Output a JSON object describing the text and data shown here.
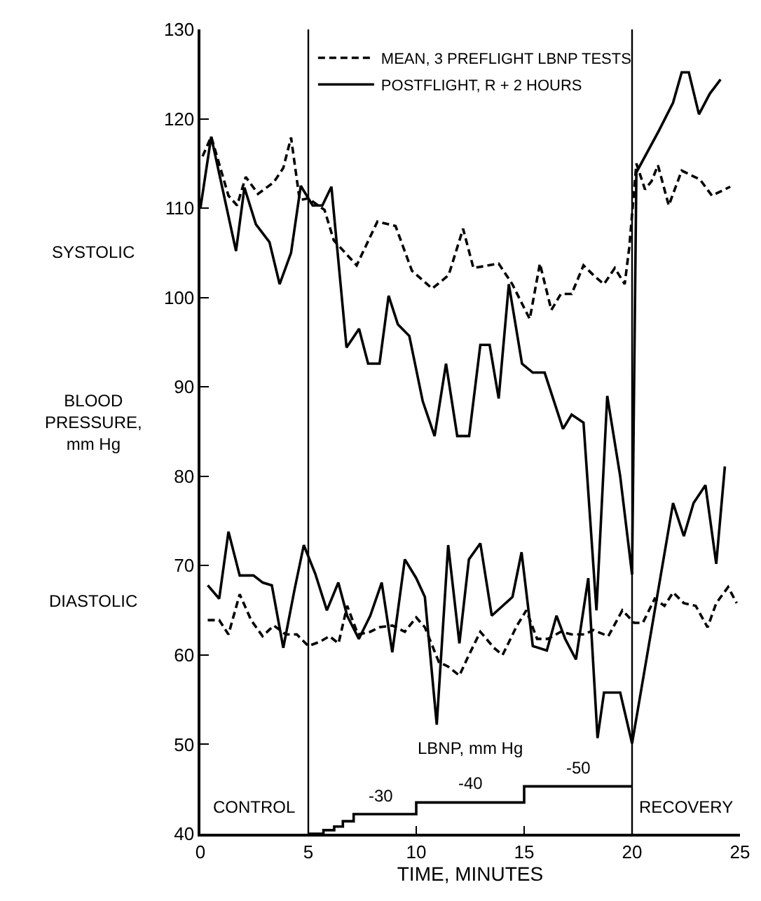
{
  "chart_data": {
    "type": "line",
    "xlabel": "TIME, MINUTES",
    "ylabel": "BLOOD PRESSURE, mm Hg",
    "xlim": [
      0,
      25
    ],
    "xticks": [
      0,
      5,
      10,
      15,
      20,
      25
    ],
    "ylim": [
      40,
      130
    ],
    "yticks": [
      40,
      50,
      60,
      70,
      80,
      90,
      100,
      110,
      120,
      130
    ],
    "legend": "top",
    "marker": "none",
    "series": [
      {
        "name": "MEAN, 3 PREFLIGHT LBNP TESTS",
        "color": "#000000",
        "line_style": "dashed",
        "x": [
          0.1,
          0.5,
          1.3,
          1.7,
          2.1,
          2.67,
          3.4,
          3.84,
          4.2,
          4.6,
          5.0,
          5.75,
          6.18,
          7.24,
          8.2,
          9.04,
          9.8,
          10.74,
          11.5,
          12.17,
          12.65,
          13.82,
          14.45,
          14.78,
          15.26,
          15.73,
          16.26,
          16.7,
          17.2,
          17.75,
          18.3,
          18.7,
          19.2,
          19.66,
          19.87,
          20.2,
          20.6,
          20.9,
          21.2,
          21.7,
          22.3,
          23.15,
          23.7,
          24.55
        ],
        "values": [
          115.8,
          118,
          111.4,
          110.3,
          113.5,
          111.6,
          112.9,
          114.5,
          117.9,
          110.9,
          111.1,
          109.8,
          106.4,
          103.6,
          108.5,
          108,
          103,
          101,
          102.5,
          107.7,
          103.3,
          103.8,
          101.5,
          99.9,
          97.6,
          103.8,
          98.6,
          100.4,
          100.4,
          103.6,
          102.3,
          101.5,
          103.3,
          101.5,
          105.6,
          115,
          112.1,
          113,
          114.8,
          110.3,
          114.2,
          113.2,
          111.4,
          112.4
        ]
      },
      {
        "name": "POSTFLIGHT, R + 2 HOURS",
        "color": "#000000",
        "line_style": "solid",
        "x": [
          0,
          0.5,
          1.65,
          2.04,
          2.57,
          3.2,
          3.67,
          4.2,
          4.65,
          5.2,
          5.65,
          6.07,
          6.77,
          7.35,
          7.77,
          8.3,
          8.72,
          9.15,
          9.68,
          10.3,
          10.85,
          11.38,
          11.9,
          12.45,
          12.97,
          13.4,
          13.82,
          14.29,
          14.9,
          15.4,
          15.95,
          16.8,
          17.2,
          17.75,
          18.35,
          18.85,
          19.45,
          20.0,
          20.2,
          21.25,
          21.9,
          22.3,
          22.63,
          23.1,
          23.6,
          24.1
        ],
        "values": [
          110,
          118,
          105.2,
          112.3,
          108.2,
          106.2,
          101.5,
          105,
          112.5,
          110.3,
          110.3,
          112.4,
          94.4,
          96.5,
          92.6,
          92.6,
          100.2,
          97,
          95.7,
          88.4,
          84.5,
          92.6,
          84.5,
          84.5,
          94.7,
          94.7,
          88.7,
          101.5,
          92.6,
          91.6,
          91.6,
          85.3,
          86.9,
          86,
          65,
          89,
          80,
          69,
          114,
          118.7,
          121.8,
          125.2,
          125.2,
          120.5,
          122.8,
          124.4
        ]
      },
      {
        "color": "#000000",
        "line_style": "dashed",
        "x": [
          0.34,
          0.87,
          1.3,
          1.82,
          2.35,
          2.88,
          3.4,
          3.95,
          4.47,
          5.0,
          5.55,
          5.98,
          6.4,
          6.8,
          7.3,
          7.87,
          8.3,
          8.9,
          9.47,
          10.0,
          10.4,
          11.05,
          11.48,
          12.0,
          12.44,
          12.97,
          13.6,
          14.0,
          14.67,
          15.1,
          15.6,
          16.1,
          16.7,
          17.2,
          17.8,
          18.2,
          18.9,
          19.55,
          20.1,
          20.5,
          21.05,
          21.5,
          21.9,
          22.4,
          22.95,
          23.5,
          23.9,
          24.45,
          24.85
        ],
        "values": [
          63.9,
          63.9,
          62.3,
          66.8,
          63.9,
          62.1,
          63.3,
          62.3,
          62.3,
          61,
          61.5,
          62.1,
          61.3,
          65.5,
          62.3,
          62.6,
          63.1,
          63.3,
          62.6,
          64.2,
          63.1,
          59.2,
          58.7,
          57.7,
          60,
          62.6,
          60.8,
          60,
          63.3,
          65,
          61.8,
          61.8,
          62.6,
          62.3,
          62.3,
          62.8,
          62.1,
          65,
          63.6,
          63.6,
          66.3,
          65.5,
          67,
          65.8,
          65.5,
          63.1,
          65.8,
          67.6,
          65.8
        ]
      },
      {
        "color": "#000000",
        "line_style": "solid",
        "x": [
          0.34,
          0.87,
          1.3,
          1.82,
          2.46,
          2.89,
          3.31,
          3.84,
          4.36,
          4.79,
          5.32,
          5.86,
          6.39,
          6.8,
          7.34,
          7.87,
          8.4,
          8.89,
          9.47,
          10.0,
          10.4,
          10.95,
          11.48,
          12.0,
          12.44,
          12.97,
          13.5,
          14.46,
          14.88,
          15.4,
          16.05,
          16.5,
          16.9,
          17.4,
          17.97,
          18.4,
          18.7,
          19.45,
          20.0,
          21.9,
          22.4,
          22.85,
          23.4,
          23.9,
          24.3
        ],
        "values": [
          67.8,
          66.3,
          73.8,
          68.9,
          68.9,
          68.1,
          67.8,
          60.8,
          67.3,
          72.3,
          69.1,
          65,
          68.1,
          64.4,
          61.8,
          64.4,
          68.1,
          60.3,
          70.7,
          68.6,
          66.5,
          52.2,
          72.3,
          61.3,
          70.7,
          72.5,
          64.4,
          66.5,
          71.5,
          61,
          60.5,
          64.4,
          61.8,
          59.5,
          68.6,
          50.7,
          55.8,
          55.8,
          50.1,
          77,
          73.3,
          77,
          79,
          70.2,
          81.1
        ]
      },
      {
        "type": "step",
        "color": "#000000",
        "line_style": "solid",
        "x": [
          5,
          5.7,
          6.2,
          6.6,
          7.1,
          10,
          15,
          20
        ],
        "values": [
          40,
          40.4,
          40.8,
          41.4,
          42.2,
          43.5,
          45.3,
          45.3
        ]
      }
    ],
    "ref_lines": [
      {
        "axis": "x",
        "value": 5,
        "color": "#000000",
        "line_style": "solid"
      },
      {
        "axis": "x",
        "value": 20,
        "color": "#000000",
        "line_style": "solid"
      }
    ],
    "annotations": [
      "SYSTOLIC",
      "DIASTOLIC",
      "CONTROL",
      "RECOVERY",
      "LBNP, mm Hg",
      "-30",
      "-40",
      "-50"
    ]
  }
}
